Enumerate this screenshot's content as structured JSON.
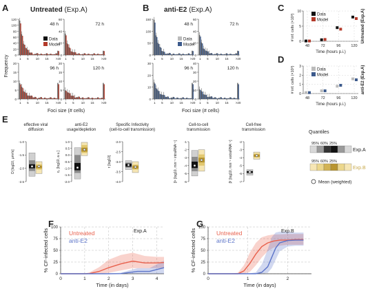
{
  "panels": {
    "A": {
      "letter": "A",
      "title_bold": "Untreated",
      "title_rest": " (Exp.A)",
      "xlabel": "Foci size (# cells)",
      "ylabel": "Frequency"
    },
    "B": {
      "letter": "B",
      "title_bold": "anti-E2",
      "title_rest": " (Exp.A)",
      "xlabel": "Foci size (# cells)"
    },
    "C": {
      "letter": "C",
      "ylabel": "# inf. cells (×10³)",
      "xlabel": "Time (hours p.i.)",
      "side": "Untreated (Exp.A)"
    },
    "D": {
      "letter": "D",
      "ylabel": "# inf. cells (×10³)",
      "xlabel": "Time (hours p.i.)",
      "side": "anti-E2 (Exp.A)"
    },
    "E": {
      "letter": "E"
    },
    "F": {
      "letter": "F",
      "ylabel": "% CF-infected cells",
      "xlabel": "Time (in days)",
      "exp": "Exp.A"
    },
    "G": {
      "letter": "G",
      "ylabel": "% CF-infected cells",
      "xlabel": "Time (in days)",
      "exp": "Exp.B"
    }
  },
  "legend_AB": {
    "data": "Data",
    "model": "Model"
  },
  "colors": {
    "untreated": "#e8604c",
    "antiE2": "#5b73c8",
    "dataBar": "#555555",
    "modelRed": "#b33a2a",
    "modelBlue": "#3c5a8c",
    "expA": "#bdbdbd",
    "expB": "#f3df9b"
  },
  "quantiles": {
    "title": "Quantiles",
    "labels": [
      "95%",
      "60%",
      "25%"
    ],
    "expA": "Exp.A",
    "expB": "Exp.B",
    "mean": "Mean (weighted)"
  },
  "chart_data": [
    {
      "id": "A",
      "type": "bar",
      "title": "Untreated (Exp.A)",
      "categories": [
        "1",
        "5",
        "10",
        "15",
        ">20"
      ],
      "subplots": [
        {
          "label": "48 h",
          "ylim": [
            0,
            120
          ],
          "yticks": [
            0,
            20,
            40,
            60,
            80,
            100,
            120
          ]
        },
        {
          "label": "72 h",
          "ylim": [
            0,
            60
          ],
          "yticks": [
            0,
            20,
            40,
            60
          ]
        },
        {
          "label": "96 h",
          "ylim": [
            0,
            20
          ],
          "yticks": [
            0,
            5,
            10,
            15,
            20
          ]
        },
        {
          "label": "120 h",
          "ylim": [
            0,
            20
          ],
          "yticks": [
            0,
            5,
            10,
            15,
            20
          ]
        }
      ]
    },
    {
      "id": "B",
      "type": "bar",
      "title": "anti-E2 (Exp.A)",
      "categories": [
        "1",
        "5",
        "10",
        "15",
        ">20"
      ],
      "subplots": [
        {
          "label": "48 h",
          "ylim": [
            0,
            150
          ],
          "yticks": [
            0,
            50,
            100,
            150
          ]
        },
        {
          "label": "72 h",
          "ylim": [
            0,
            60
          ],
          "yticks": [
            0,
            20,
            40,
            60
          ]
        },
        {
          "label": "96 h",
          "ylim": [
            0,
            30
          ],
          "yticks": [
            0,
            10,
            20,
            30
          ]
        },
        {
          "label": "120 h",
          "ylim": [
            0,
            40
          ],
          "yticks": [
            0,
            10,
            20,
            30,
            40
          ]
        }
      ]
    },
    {
      "id": "C",
      "type": "scatter",
      "x": [
        48,
        72,
        96,
        120
      ],
      "ylim": [
        0,
        10
      ],
      "yticks": [
        0,
        5,
        10
      ],
      "series": [
        {
          "name": "Data",
          "values": [
            0.1,
            0.5,
            4.5,
            8.0
          ]
        },
        {
          "name": "Model",
          "values": [
            0.1,
            0.6,
            4.0,
            7.5
          ]
        }
      ]
    },
    {
      "id": "D",
      "type": "scatter",
      "x": [
        48,
        72,
        96,
        120
      ],
      "ylim": [
        0,
        3
      ],
      "yticks": [
        0,
        1,
        2,
        3
      ],
      "series": [
        {
          "name": "Data",
          "values": [
            0.1,
            0.3,
            0.8,
            1.6
          ]
        },
        {
          "name": "Model",
          "values": [
            0.1,
            0.3,
            0.9,
            1.5
          ]
        }
      ]
    },
    {
      "id": "E",
      "type": "box",
      "boxes": [
        {
          "title": [
            "effective viral",
            "diffusion"
          ],
          "ylabel": "D [log10, μm²/s]",
          "ylim": [
            -2.5,
            -1
          ],
          "yticks": [
            -2.5,
            -2.0,
            -1.5,
            -1.0
          ],
          "a": {
            "q95": [
              -2.3,
              -1.42
            ],
            "q60": [
              -2.1,
              -1.7
            ],
            "q25": [
              -2.0,
              -1.85
            ],
            "mean": -1.93
          },
          "b": {
            "q95": [
              -2.2,
              -1.75
            ],
            "q60": [
              -2.05,
              -1.85
            ],
            "q25": [
              -2.0,
              -1.9
            ],
            "mean": -1.93
          }
        },
        {
          "title": [
            "anti-E2",
            "usage/depletion"
          ],
          "ylabel": "c₀ [log10, a.u.]",
          "ylim": [
            -2,
            1
          ],
          "yticks": [
            -2.0,
            -1.5,
            -1.0,
            -0.5,
            0.0,
            0.5,
            1.0
          ],
          "a": {
            "q95": [
              -1.8,
              0.55
            ],
            "q60": [
              -1.35,
              0.0
            ],
            "q25": [
              -1.15,
              -0.6
            ],
            "mean": -0.95
          },
          "b": {
            "q95": [
              -0.05,
              0.95
            ],
            "q60": [
              0.15,
              0.75
            ],
            "q25": [
              0.25,
              0.55
            ],
            "mean": 0.4
          }
        },
        {
          "title": [
            "Specific Infectivity",
            "(cell-to-cell transmission)"
          ],
          "ylabel": "τ [log10]",
          "ylim": [
            -4,
            -2
          ],
          "yticks": [
            -4.0,
            -3.5,
            -3.0,
            -2.5,
            -2.0
          ],
          "a": {
            "q95": [
              -3.4,
              -2.95
            ],
            "q60": [
              -3.3,
              -3.05
            ],
            "q25": [
              -3.25,
              -3.1
            ],
            "mean": -3.17
          },
          "b": {
            "q95": [
              -3.55,
              -3.0
            ],
            "q60": [
              -3.4,
              -3.15
            ],
            "q25": [
              -3.35,
              -3.2
            ],
            "mean": -3.27
          }
        },
        {
          "title": [
            "Cell-to-cell",
            "transmission"
          ],
          "ylabel": "βᶜ [log10, min⁻¹ intraRNA⁻¹]",
          "ylim": [
            -6,
            -1
          ],
          "yticks": [
            -6,
            -5,
            -4,
            -3,
            -2,
            -1
          ],
          "a": {
            "q95": [
              -5.3,
              -2.1
            ],
            "q60": [
              -4.7,
              -2.9
            ],
            "q25": [
              -4.3,
              -3.5
            ],
            "mean": -4.0
          },
          "b": {
            "q95": [
              -4.7,
              -2.0
            ],
            "q60": [
              -4.0,
              -2.6
            ],
            "q25": [
              -3.6,
              -3.0
            ],
            "mean": -3.3
          }
        },
        {
          "title": [
            "Cell-free",
            "transmission"
          ],
          "ylabel": "βᶠ [log10, min⁻¹ extraRNA⁻¹]",
          "ylim": [
            -7,
            -2
          ],
          "yticks": [
            -7,
            -6,
            -5,
            -4,
            -3,
            -2
          ],
          "a": {
            "q95": [
              -6.2,
              -5.5
            ],
            "q60": [
              -6.0,
              -5.65
            ],
            "q25": [
              -5.9,
              -5.7
            ],
            "mean": -5.8
          },
          "b": {
            "q95": [
              -4.2,
              -3.3
            ],
            "q60": [
              -4.0,
              -3.5
            ],
            "q25": [
              -3.9,
              -3.6
            ],
            "mean": -3.75
          }
        }
      ]
    },
    {
      "id": "F",
      "type": "line",
      "xlim": [
        0,
        4.3
      ],
      "ylim": [
        0,
        100
      ],
      "xticks": [
        0,
        1,
        2,
        3,
        4
      ],
      "yticks": [
        0,
        25,
        50,
        75,
        100
      ],
      "series": [
        {
          "name": "Untreated",
          "x": [
            0,
            1,
            1.2,
            1.6,
            2,
            2.5,
            3,
            3.5,
            4,
            4.3
          ],
          "y": [
            0,
            0,
            0.5,
            5,
            13,
            21,
            27,
            23,
            23,
            24
          ],
          "lo": [
            0,
            0,
            0,
            0,
            2,
            7,
            12,
            12,
            12,
            12
          ],
          "hi": [
            0,
            0,
            3,
            14,
            30,
            40,
            45,
            38,
            36,
            36
          ]
        },
        {
          "name": "anti-E2",
          "x": [
            0,
            1,
            1.5,
            2,
            2.5,
            2.9,
            3.2,
            3.7,
            4.3
          ],
          "y": [
            0,
            0,
            0,
            0,
            0.3,
            3,
            5,
            5,
            13
          ],
          "lo": [
            0,
            0,
            0,
            0,
            0,
            0,
            0,
            0,
            0
          ],
          "hi": [
            0,
            0,
            0,
            0.5,
            2,
            8,
            12,
            12,
            28
          ]
        }
      ]
    },
    {
      "id": "G",
      "type": "line",
      "xlim": [
        0,
        2.6
      ],
      "ylim": [
        0,
        100
      ],
      "xticks": [
        0,
        1,
        2
      ],
      "yticks": [
        0,
        25,
        50,
        75,
        100
      ],
      "series": [
        {
          "name": "Untreated",
          "x": [
            0,
            0.5,
            0.75,
            0.9,
            1.05,
            1.2,
            1.35,
            1.5,
            1.65,
            1.8,
            2.0,
            2.2,
            2.4
          ],
          "y": [
            0,
            0,
            0,
            6,
            22,
            42,
            58,
            66,
            70,
            72,
            72,
            73,
            73
          ],
          "lo": [
            0,
            0,
            0,
            0,
            4,
            18,
            35,
            48,
            56,
            60,
            62,
            62,
            62
          ],
          "hi": [
            0,
            0,
            2,
            18,
            45,
            66,
            78,
            82,
            84,
            84,
            85,
            85,
            85
          ]
        },
        {
          "name": "anti-E2",
          "x": [
            0,
            1.0,
            1.2,
            1.35,
            1.5,
            1.6,
            1.7,
            1.8,
            2.0,
            2.2,
            2.4
          ],
          "y": [
            0,
            0,
            0,
            3,
            15,
            35,
            55,
            66,
            71,
            72,
            72
          ],
          "lo": [
            0,
            0,
            0,
            0,
            2,
            12,
            30,
            48,
            58,
            60,
            60
          ],
          "hi": [
            0,
            0,
            3,
            20,
            52,
            78,
            88,
            90,
            90,
            88,
            88
          ]
        }
      ]
    }
  ]
}
